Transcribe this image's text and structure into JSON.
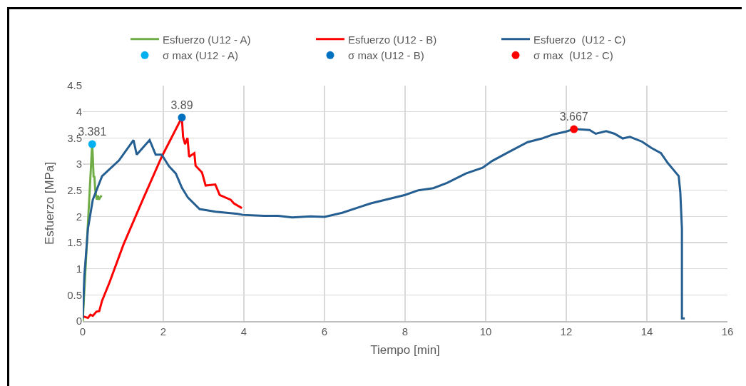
{
  "chart_data": {
    "type": "line",
    "xlabel": "Tiempo [min]",
    "ylabel": "Esfuerzo [MPa]",
    "xlim": [
      0,
      16
    ],
    "xticks": [
      0,
      2,
      4,
      6,
      8,
      10,
      12,
      14,
      16
    ],
    "ylim": [
      0,
      4.5
    ],
    "yticks": [
      0,
      0.5,
      1,
      1.5,
      2,
      2.5,
      3,
      3.5,
      4,
      4.5
    ],
    "grid": true,
    "legend": "top",
    "marker": "none",
    "line_style": "solid",
    "series": [
      {
        "name": "Esfuerzo (U12 - A)",
        "color": "#70ad47",
        "x": [
          0,
          0.235,
          0.25,
          0.27,
          0.29,
          0.31,
          0.35,
          0.38,
          0.4,
          0.43,
          0.47
        ],
        "values": [
          0,
          3.39,
          3.14,
          2.75,
          2.77,
          2.5,
          2.32,
          2.4,
          2.32,
          2.36,
          2.4
        ]
      },
      {
        "name": "Esfuerzo (U12 - B)",
        "color": "#ff0000",
        "x": [
          0,
          0.01,
          0.13,
          0.19,
          0.25,
          0.34,
          0.41,
          0.48,
          0.66,
          1.01,
          1.49,
          1.96,
          2.46,
          2.49,
          2.54,
          2.6,
          2.64,
          2.77,
          2.8,
          2.96,
          3.05,
          3.29,
          3.4,
          3.67,
          3.75,
          3.95
        ],
        "values": [
          0.1,
          0.09,
          0.06,
          0.12,
          0.1,
          0.18,
          0.19,
          0.39,
          0.73,
          1.46,
          2.32,
          3.14,
          3.89,
          3.52,
          3.38,
          3.5,
          3.14,
          3.21,
          2.97,
          2.84,
          2.59,
          2.61,
          2.41,
          2.32,
          2.25,
          2.16
        ]
      },
      {
        "name": "Esfuerzo  (U12 - C)",
        "color": "#255e91",
        "x": [
          0,
          0.04,
          0.13,
          0.25,
          0.48,
          0.9,
          1.26,
          1.34,
          1.66,
          1.81,
          1.96,
          2.14,
          2.31,
          2.46,
          2.61,
          2.9,
          3.3,
          3.85,
          3.97,
          4.5,
          4.85,
          5.2,
          5.65,
          6.0,
          6.44,
          7.15,
          8.0,
          8.33,
          8.7,
          9.04,
          9.51,
          9.92,
          10.16,
          10.57,
          11.04,
          11.4,
          11.69,
          11.99,
          12.19,
          12.58,
          12.73,
          12.99,
          13.2,
          13.4,
          13.58,
          13.88,
          14.11,
          14.35,
          14.52,
          14.64,
          14.79,
          14.83,
          14.87,
          14.87,
          14.94
        ],
        "values": [
          0.05,
          0.86,
          1.77,
          2.32,
          2.77,
          3.07,
          3.46,
          3.18,
          3.46,
          3.18,
          3.18,
          2.96,
          2.82,
          2.55,
          2.36,
          2.14,
          2.09,
          2.05,
          2.03,
          2.01,
          2.01,
          1.98,
          2.0,
          1.99,
          2.07,
          2.25,
          2.41,
          2.5,
          2.54,
          2.64,
          2.82,
          2.93,
          3.06,
          3.23,
          3.42,
          3.49,
          3.57,
          3.62,
          3.67,
          3.65,
          3.58,
          3.63,
          3.58,
          3.49,
          3.52,
          3.43,
          3.31,
          3.21,
          3.02,
          2.91,
          2.77,
          2.46,
          1.77,
          0.05,
          0.05
        ]
      },
      {
        "name": "σ max (U12 - A)",
        "type": "scatter",
        "marker": "circle",
        "color": "#00b0f0",
        "x": [
          0.235
        ],
        "values": [
          3.381
        ],
        "value_labels": [
          "3.381"
        ]
      },
      {
        "name": "σ max (U12 - B)",
        "type": "scatter",
        "marker": "circle",
        "color": "#0070c0",
        "x": [
          2.46
        ],
        "values": [
          3.89
        ],
        "value_labels": [
          "3.89"
        ]
      },
      {
        "name": "σ max  (U12 - C)",
        "type": "scatter",
        "marker": "circle",
        "color": "#ff0000",
        "x": [
          12.19
        ],
        "values": [
          3.667
        ],
        "value_labels": [
          "3.667"
        ]
      }
    ]
  }
}
